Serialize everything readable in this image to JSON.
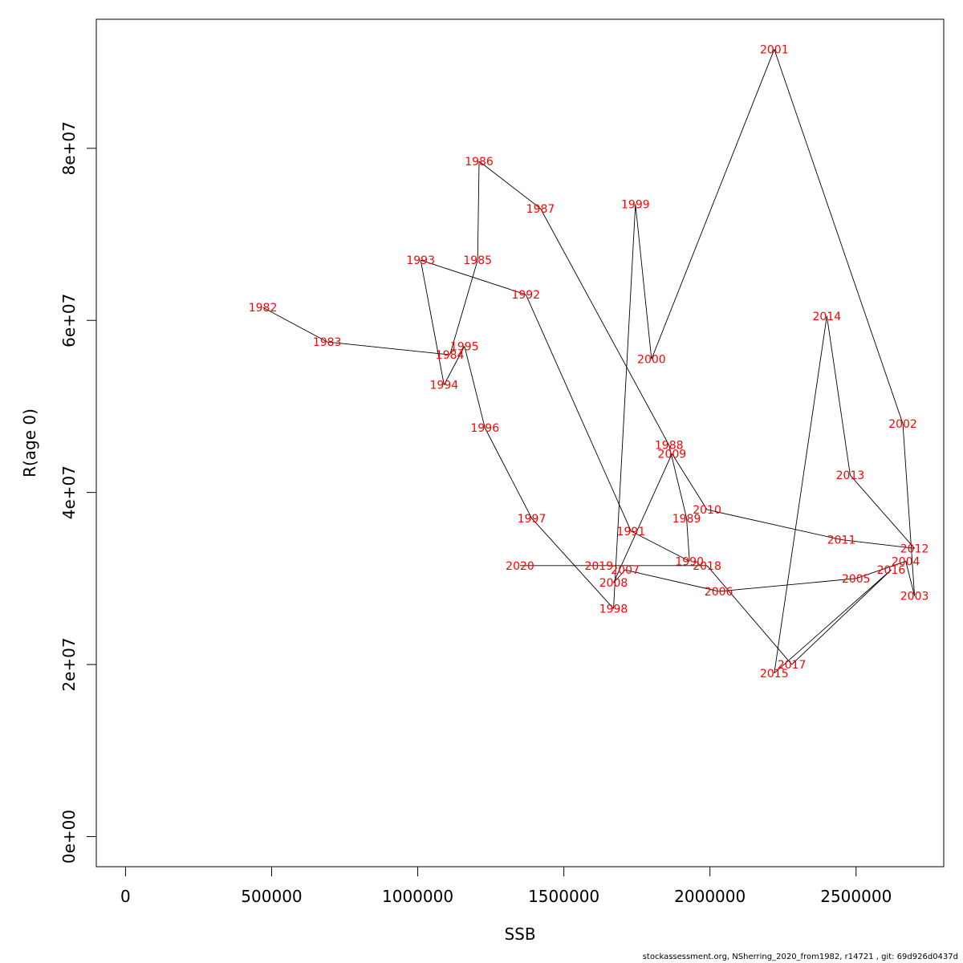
{
  "chart_data": {
    "type": "line",
    "xlabel": "SSB",
    "ylabel": "R(age 0)",
    "xlim": [
      -100000,
      2800000
    ],
    "ylim": [
      -3500000,
      95000000
    ],
    "x_ticks": [
      {
        "value": 0,
        "label": "0"
      },
      {
        "value": 500000,
        "label": "500000"
      },
      {
        "value": 1000000,
        "label": "1000000"
      },
      {
        "value": 1500000,
        "label": "1500000"
      },
      {
        "value": 2000000,
        "label": "2000000"
      },
      {
        "value": 2500000,
        "label": "2500000"
      }
    ],
    "y_ticks": [
      {
        "value": 0,
        "label": "0e+00"
      },
      {
        "value": 20000000,
        "label": "2e+07"
      },
      {
        "value": 40000000,
        "label": "4e+07"
      },
      {
        "value": 60000000,
        "label": "6e+07"
      },
      {
        "value": 80000000,
        "label": "8e+07"
      }
    ],
    "line_color": "#000000",
    "label_color": "#ff0000",
    "points": [
      {
        "year": "1982",
        "x": 470000,
        "y": 61500000
      },
      {
        "year": "1983",
        "x": 690000,
        "y": 57500000
      },
      {
        "year": "1984",
        "x": 1110000,
        "y": 56000000
      },
      {
        "year": "1985",
        "x": 1205000,
        "y": 67000000
      },
      {
        "year": "1986",
        "x": 1210000,
        "y": 78500000
      },
      {
        "year": "1987",
        "x": 1420000,
        "y": 73000000
      },
      {
        "year": "1988",
        "x": 1860000,
        "y": 45500000
      },
      {
        "year": "1989",
        "x": 1920000,
        "y": 37000000
      },
      {
        "year": "1990",
        "x": 1930000,
        "y": 32000000
      },
      {
        "year": "1991",
        "x": 1730000,
        "y": 35500000
      },
      {
        "year": "1992",
        "x": 1370000,
        "y": 63000000
      },
      {
        "year": "1993",
        "x": 1010000,
        "y": 67000000
      },
      {
        "year": "1994",
        "x": 1090000,
        "y": 52500000
      },
      {
        "year": "1995",
        "x": 1160000,
        "y": 57000000
      },
      {
        "year": "1996",
        "x": 1230000,
        "y": 47500000
      },
      {
        "year": "1997",
        "x": 1390000,
        "y": 37000000
      },
      {
        "year": "1998",
        "x": 1670000,
        "y": 26500000
      },
      {
        "year": "1999",
        "x": 1745000,
        "y": 73500000
      },
      {
        "year": "2000",
        "x": 1800000,
        "y": 55500000
      },
      {
        "year": "2001",
        "x": 2220000,
        "y": 91500000
      },
      {
        "year": "2002",
        "x": 2660000,
        "y": 48000000
      },
      {
        "year": "2003",
        "x": 2700000,
        "y": 28000000
      },
      {
        "year": "2004",
        "x": 2670000,
        "y": 32000000
      },
      {
        "year": "2005",
        "x": 2500000,
        "y": 30000000
      },
      {
        "year": "2006",
        "x": 2030000,
        "y": 28500000
      },
      {
        "year": "2007",
        "x": 1710000,
        "y": 31000000
      },
      {
        "year": "2008",
        "x": 1670000,
        "y": 29500000
      },
      {
        "year": "2009",
        "x": 1870000,
        "y": 44500000
      },
      {
        "year": "2010",
        "x": 1990000,
        "y": 38000000
      },
      {
        "year": "2011",
        "x": 2450000,
        "y": 34500000
      },
      {
        "year": "2012",
        "x": 2700000,
        "y": 33500000
      },
      {
        "year": "2013",
        "x": 2480000,
        "y": 42000000
      },
      {
        "year": "2014",
        "x": 2400000,
        "y": 60500000
      },
      {
        "year": "2015",
        "x": 2220000,
        "y": 19000000
      },
      {
        "year": "2016",
        "x": 2620000,
        "y": 31000000
      },
      {
        "year": "2017",
        "x": 2280000,
        "y": 20000000
      },
      {
        "year": "2018",
        "x": 1990000,
        "y": 31500000
      },
      {
        "year": "2019",
        "x": 1620000,
        "y": 31500000
      },
      {
        "year": "2020",
        "x": 1350000,
        "y": 31500000
      }
    ]
  },
  "footer": {
    "text": "stockassessment.org, NSherring_2020_from1982, r14721 , git: 69d926d0437d"
  }
}
